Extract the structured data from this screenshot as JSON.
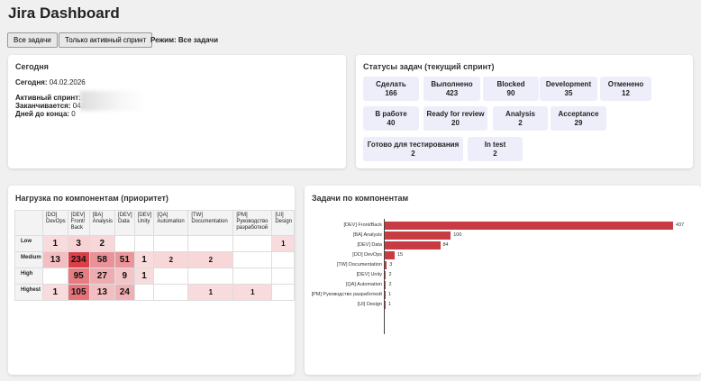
{
  "app": {
    "title": "Jira Dashboard"
  },
  "toolbar": {
    "btn_all": "Все задачи",
    "btn_sprint": "Только активный спринт",
    "mode_text": "Режим: Все задачи"
  },
  "today": {
    "title": "Сегодня",
    "date_label": "Сегодня:",
    "date_value": "04.02.2026",
    "sprint_label": "Активный спринт:",
    "ends_label": "Заканчивается:",
    "ends_value": "04.0",
    "days_label": "Дней до конца:",
    "days_value": "0"
  },
  "statuses": {
    "title": "Статусы задач (текущий спринт)",
    "items": [
      {
        "name": "Сделать",
        "count": "166"
      },
      {
        "name": "Выполнено",
        "count": "423"
      },
      {
        "name": "Blocked",
        "count": "90"
      },
      {
        "name": "Development",
        "count": "35"
      },
      {
        "name": "Отменено",
        "count": "12"
      },
      {
        "name": "В работе",
        "count": "40"
      },
      {
        "name": "Ready for review",
        "count": "20"
      },
      {
        "name": "Analysis",
        "count": "2"
      },
      {
        "name": "Acceptance",
        "count": "29"
      },
      {
        "name": "Готово для тестирования",
        "count": "2"
      },
      {
        "name": "In test",
        "count": "2"
      }
    ]
  },
  "heatmap": {
    "title": "Нагрузка по компонентам (приоритет)",
    "columns": [
      "[DO] DevOps",
      "[DEV] Front/ Back",
      "[BA] Analysis",
      "[DEV] Data",
      "[DEV] Unity",
      "[QA] Automation",
      "[TW] Documentation",
      "[PM] Руководство разработкой",
      "[UI] Design"
    ],
    "rows": [
      {
        "label": "Low",
        "values": [
          "1",
          "3",
          "2",
          "",
          "",
          "",
          "",
          "",
          "1"
        ]
      },
      {
        "label": "Medium",
        "values": [
          "13",
          "234",
          "58",
          "51",
          "1",
          "2",
          "2",
          "",
          ""
        ]
      },
      {
        "label": "High",
        "values": [
          "",
          "95",
          "27",
          "9",
          "1",
          "",
          "",
          "",
          ""
        ]
      },
      {
        "label": "Highest",
        "values": [
          "1",
          "105",
          "13",
          "24",
          "",
          "",
          "1",
          "1",
          ""
        ]
      }
    ],
    "color": "#d9363e"
  },
  "components": {
    "title": "Задачи по компонентам",
    "bar_color": "#c93b42"
  },
  "chart_data": {
    "type": "bar",
    "orientation": "horizontal",
    "categories": [
      "[DEV] Front/Back",
      "[BA] Analysis",
      "[DEV] Data",
      "[DO] DevOps",
      "[TW] Documentation",
      "[DEV] Unity",
      "[QA] Automation",
      "[PM] Руководство разработкой",
      "[UI] Design"
    ],
    "values": [
      437,
      100,
      84,
      15,
      3,
      2,
      2,
      1,
      1
    ],
    "title": "Задачи по компонентам",
    "xlim": [
      0,
      437
    ]
  }
}
